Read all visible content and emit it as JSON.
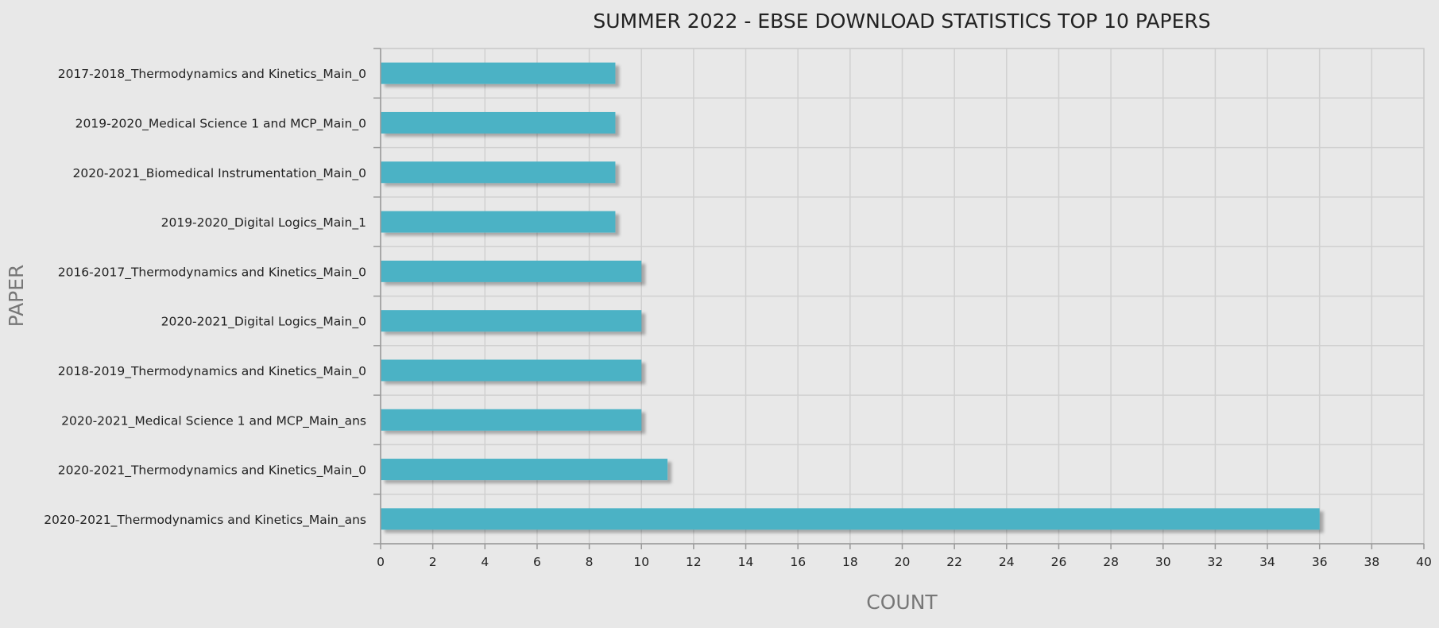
{
  "chart_data": {
    "type": "bar",
    "orientation": "horizontal",
    "title": "SUMMER 2022 - EBSE DOWNLOAD STATISTICS TOP 10 PAPERS",
    "xlabel": "COUNT",
    "ylabel": "PAPER",
    "xlim": [
      0,
      40
    ],
    "x_ticks": [
      "0",
      "2",
      "4",
      "6",
      "8",
      "10",
      "12",
      "14",
      "16",
      "18",
      "20",
      "22",
      "24",
      "26",
      "28",
      "30",
      "32",
      "34",
      "36",
      "38",
      "40"
    ],
    "grid": true,
    "legend": "none",
    "bar_color": "#4bb2c5",
    "categories": [
      "2017-2018_Thermodynamics and Kinetics_Main_0",
      "2019-2020_Medical Science 1 and MCP_Main_0",
      "2020-2021_Biomedical Instrumentation_Main_0",
      "2019-2020_Digital Logics_Main_1",
      "2016-2017_Thermodynamics and Kinetics_Main_0",
      "2020-2021_Digital Logics_Main_0",
      "2018-2019_Thermodynamics and Kinetics_Main_0",
      "2020-2021_Medical Science 1 and MCP_Main_ans",
      "2020-2021_Thermodynamics and Kinetics_Main_0",
      "2020-2021_Thermodynamics and Kinetics_Main_ans"
    ],
    "values": [
      9,
      9,
      9,
      9,
      10,
      10,
      10,
      10,
      11,
      36
    ]
  }
}
